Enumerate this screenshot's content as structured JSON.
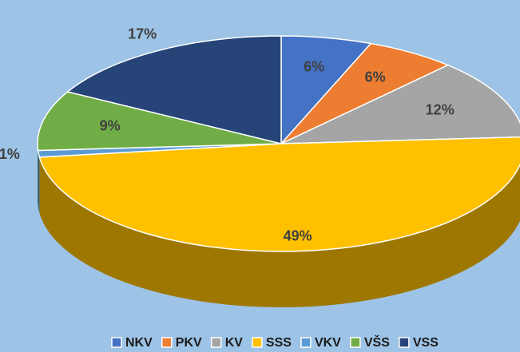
{
  "chart_data": {
    "type": "pie",
    "categories": [
      "NKV",
      "PKV",
      "KV",
      "SSS",
      "VKV",
      "VŠS",
      "VSS"
    ],
    "values": [
      6,
      6,
      12,
      49,
      1,
      9,
      17
    ],
    "value_labels": [
      "6%",
      "6%",
      "12%",
      "49%",
      "1%",
      "9%",
      "17%"
    ],
    "colors": [
      "#4472c4",
      "#ed7d31",
      "#a5a5a5",
      "#ffc000",
      "#5b9bd5",
      "#70ad47",
      "#264478"
    ],
    "legend": "bottom"
  }
}
